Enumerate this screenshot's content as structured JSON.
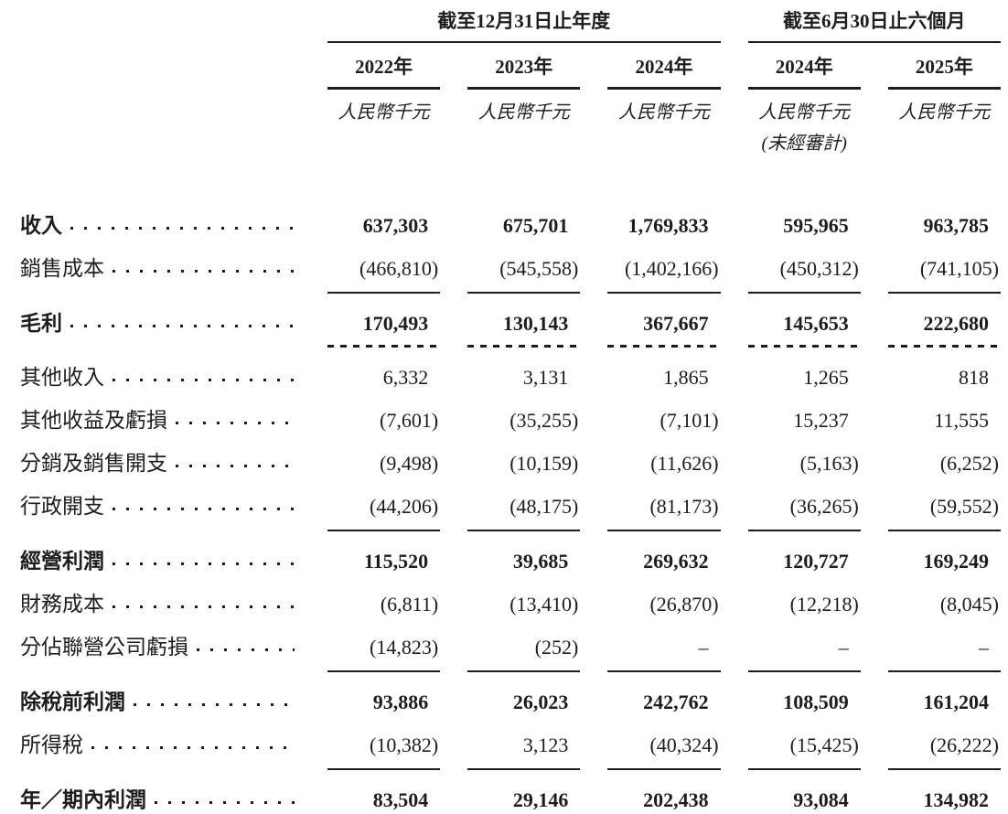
{
  "table": {
    "groups": [
      {
        "title": "截至12月31日止年度",
        "cols": 3
      },
      {
        "title": "截至6月30日止六個月",
        "cols": 2
      }
    ],
    "columns": [
      {
        "year": "2022年",
        "unit": "人民幣千元",
        "note": ""
      },
      {
        "year": "2023年",
        "unit": "人民幣千元",
        "note": ""
      },
      {
        "year": "2024年",
        "unit": "人民幣千元",
        "note": ""
      },
      {
        "year": "2024年",
        "unit": "人民幣千元",
        "note": "(未經審計)"
      },
      {
        "year": "2025年",
        "unit": "人民幣千元",
        "note": ""
      }
    ],
    "rows": [
      {
        "label": "收入",
        "values": [
          "637,303",
          "675,701",
          "1,769,833",
          "595,965",
          "963,785"
        ]
      },
      {
        "label": "銷售成本",
        "values": [
          "(466,810)",
          "(545,558)",
          "(1,402,166)",
          "(450,312)",
          "(741,105)"
        ]
      },
      {
        "label": "毛利",
        "values": [
          "170,493",
          "130,143",
          "367,667",
          "145,653",
          "222,680"
        ]
      },
      {
        "label": "其他收入",
        "values": [
          "6,332",
          "3,131",
          "1,865",
          "1,265",
          "818"
        ]
      },
      {
        "label": "其他收益及虧損",
        "values": [
          "(7,601)",
          "(35,255)",
          "(7,101)",
          "15,237",
          "11,555"
        ]
      },
      {
        "label": "分銷及銷售開支",
        "values": [
          "(9,498)",
          "(10,159)",
          "(11,626)",
          "(5,163)",
          "(6,252)"
        ]
      },
      {
        "label": "行政開支",
        "values": [
          "(44,206)",
          "(48,175)",
          "(81,173)",
          "(36,265)",
          "(59,552)"
        ]
      },
      {
        "label": "經營利潤",
        "values": [
          "115,520",
          "39,685",
          "269,632",
          "120,727",
          "169,249"
        ]
      },
      {
        "label": "財務成本",
        "values": [
          "(6,811)",
          "(13,410)",
          "(26,870)",
          "(12,218)",
          "(8,045)"
        ]
      },
      {
        "label": "分佔聯營公司虧損",
        "values": [
          "(14,823)",
          "(252)",
          "–",
          "–",
          "–"
        ]
      },
      {
        "label": "除稅前利潤",
        "values": [
          "93,886",
          "26,023",
          "242,762",
          "108,509",
          "161,204"
        ]
      },
      {
        "label": "所得稅",
        "values": [
          "(10,382)",
          "3,123",
          "(40,324)",
          "(15,425)",
          "(26,222)"
        ]
      },
      {
        "label": "年／期內利潤",
        "values": [
          "83,504",
          "29,146",
          "202,438",
          "93,084",
          "134,982"
        ]
      }
    ]
  }
}
